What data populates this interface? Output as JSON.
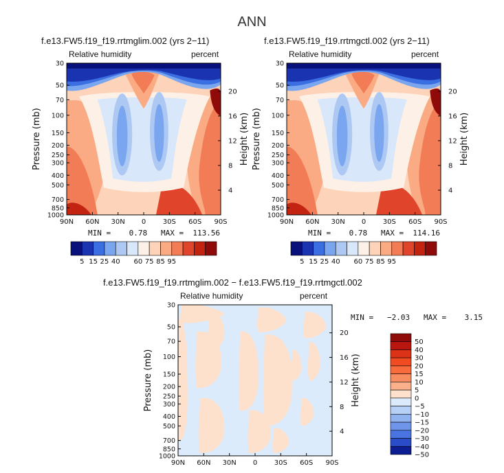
{
  "figure_title": "ANN",
  "chart_data": [
    {
      "type": "heatmap",
      "title": "f.e13.FW5.f19_f19.rrtmglim.002 (yrs 2−11)",
      "variable": "Relative humidity",
      "units": "percent",
      "ylabel": "Pressure (mb)",
      "ylabel_right": "Height (km)",
      "x_ticks": [
        "90N",
        "60N",
        "30N",
        "0",
        "30S",
        "60S",
        "90S"
      ],
      "y_ticks": [
        30,
        50,
        70,
        100,
        150,
        200,
        250,
        300,
        400,
        500,
        700,
        850,
        1000
      ],
      "height_ticks": [
        20,
        16,
        12,
        8,
        4
      ],
      "stats": {
        "min": 0.78,
        "max": 113.56
      },
      "stats_text": "MIN =    0.78   MAX =  113.56",
      "colorbar_labels": [
        "5",
        "15",
        "25",
        "40",
        "60",
        "75",
        "85",
        "95"
      ]
    },
    {
      "type": "heatmap",
      "title": "f.e13.FW5.f19_f19.rrtmgctl.002 (yrs 2−11)",
      "variable": "Relative humidity",
      "units": "percent",
      "ylabel": "Pressure (mb)",
      "ylabel_right": "Height (km)",
      "x_ticks": [
        "90N",
        "60N",
        "30N",
        "0",
        "30S",
        "60S",
        "90S"
      ],
      "y_ticks": [
        30,
        50,
        70,
        100,
        150,
        200,
        250,
        300,
        400,
        500,
        700,
        850,
        1000
      ],
      "height_ticks": [
        20,
        16,
        12,
        8,
        4
      ],
      "stats": {
        "min": 0.78,
        "max": 114.16
      },
      "stats_text": "MIN =    0.78   MAX =  114.16",
      "colorbar_labels": [
        "5",
        "15",
        "25",
        "40",
        "60",
        "75",
        "85",
        "95"
      ]
    },
    {
      "type": "heatmap",
      "title": "f.e13.FW5.f19_f19.rrtmglim.002 − f.e13.FW5.f19_f19.rrtmgctl.002",
      "variable": "Relative humidity",
      "units": "percent",
      "ylabel": "Pressure (mb)",
      "ylabel_right": "Height (km)",
      "x_ticks": [
        "90N",
        "60N",
        "30N",
        "0",
        "30S",
        "60S",
        "90S"
      ],
      "y_ticks": [
        30,
        50,
        70,
        100,
        150,
        200,
        250,
        300,
        400,
        500,
        700,
        850,
        1000
      ],
      "height_ticks": [
        20,
        16,
        12,
        8,
        4
      ],
      "stats": {
        "min": -2.03,
        "max": 3.15
      },
      "stats_text": "MIN =   −2.03   MAX =    3.15",
      "colorbar_labels": [
        "50",
        "40",
        "30",
        "20",
        "15",
        "10",
        "5",
        "0",
        "−5",
        "−10",
        "−15",
        "−20",
        "−30",
        "−40",
        "−50"
      ]
    }
  ],
  "colors": {
    "abs_scale": [
      "#08107a",
      "#1a33b0",
      "#3b6ee0",
      "#7aa6ef",
      "#adc9f3",
      "#d9e7fa",
      "#fdf0e6",
      "#fdd3b9",
      "#fbab84",
      "#f27c55",
      "#e0452b",
      "#c22411",
      "#8f0b0a"
    ],
    "diff_scale": [
      "#8f0b0a",
      "#b8160e",
      "#dc3217",
      "#f14b22",
      "#f76b3c",
      "#f98d62",
      "#fbb08c",
      "#fde1cc",
      "#dcebfb",
      "#b6d0f6",
      "#90b3f0",
      "#6e95ea",
      "#4a74e2",
      "#2a4cc8",
      "#0c1e92"
    ]
  }
}
